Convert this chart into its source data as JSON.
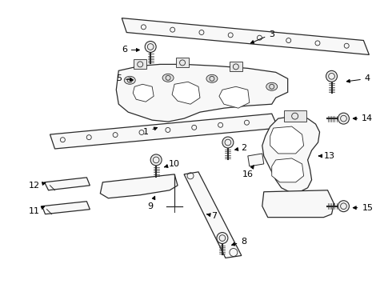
{
  "background_color": "#ffffff",
  "line_color": "#2a2a2a",
  "fill_color": "#f8f8f8",
  "label_fontsize": 8,
  "fig_width": 4.9,
  "fig_height": 3.6,
  "dpi": 100
}
